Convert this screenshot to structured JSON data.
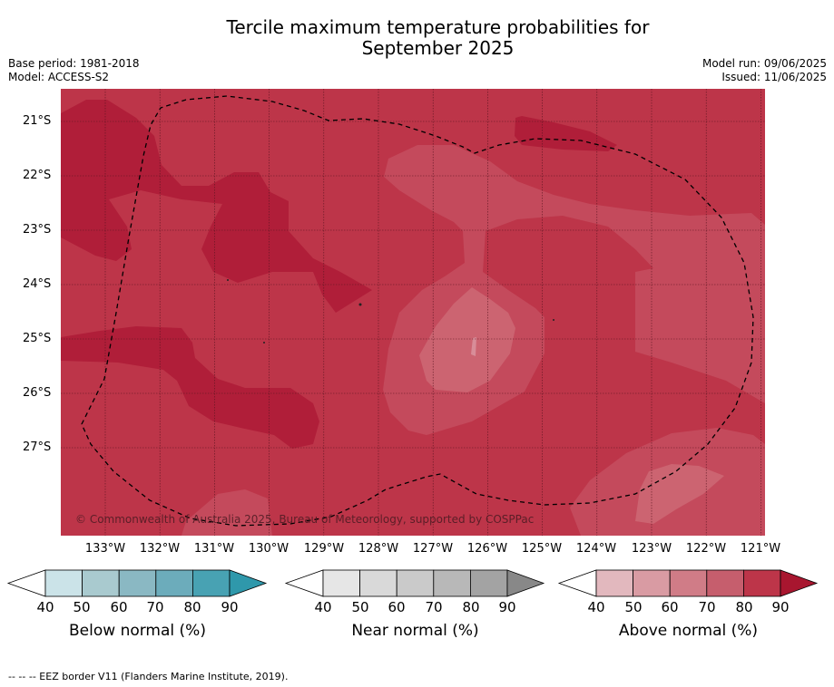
{
  "title_line1": "Tercile maximum temperature probabilities for",
  "title_line2": "September 2025",
  "meta_left": {
    "base_period": "Base period: 1981-2018",
    "model": "Model: ACCESS-S2"
  },
  "meta_right": {
    "model_run": "Model run: 09/06/2025",
    "issued": "Issued: 11/06/2025"
  },
  "map": {
    "background_color": "#bd3549",
    "lat_labels": [
      "21°S",
      "22°S",
      "23°S",
      "24°S",
      "25°S",
      "26°S",
      "27°S"
    ],
    "lon_labels": [
      "133°W",
      "132°W",
      "131°W",
      "130°W",
      "129°W",
      "128°W",
      "127°W",
      "126°W",
      "125°W",
      "124°W",
      "123°W",
      "122°W",
      "121°W"
    ],
    "copyright": "© Commonwealth of Australia 2025, Bureau of Meteorology, supported by COSPPac"
  },
  "colorbars": [
    {
      "name": "below",
      "title": "Below normal (%)",
      "ticks": [
        "40",
        "50",
        "60",
        "70",
        "80",
        "90"
      ],
      "colors": [
        "#cbe3e8",
        "#a9cacf",
        "#8ab8c3",
        "#6cacbb",
        "#48a2b3",
        "#2f98ab"
      ]
    },
    {
      "name": "near",
      "title": "Near normal (%)",
      "ticks": [
        "40",
        "50",
        "60",
        "70",
        "80",
        "90"
      ],
      "colors": [
        "#e6e6e6",
        "#d9d9d9",
        "#cacaca",
        "#b8b8b8",
        "#a3a3a3",
        "#888888"
      ]
    },
    {
      "name": "above",
      "title": "Above normal (%)",
      "ticks": [
        "40",
        "50",
        "60",
        "70",
        "80",
        "90"
      ],
      "colors": [
        "#e2b8be",
        "#d99ba3",
        "#d07c87",
        "#c65e6d",
        "#bd3549",
        "#a8162f"
      ]
    }
  ],
  "footer": "-- -- -- EEZ border V11 (Flanders Marine Institute, 2019)."
}
